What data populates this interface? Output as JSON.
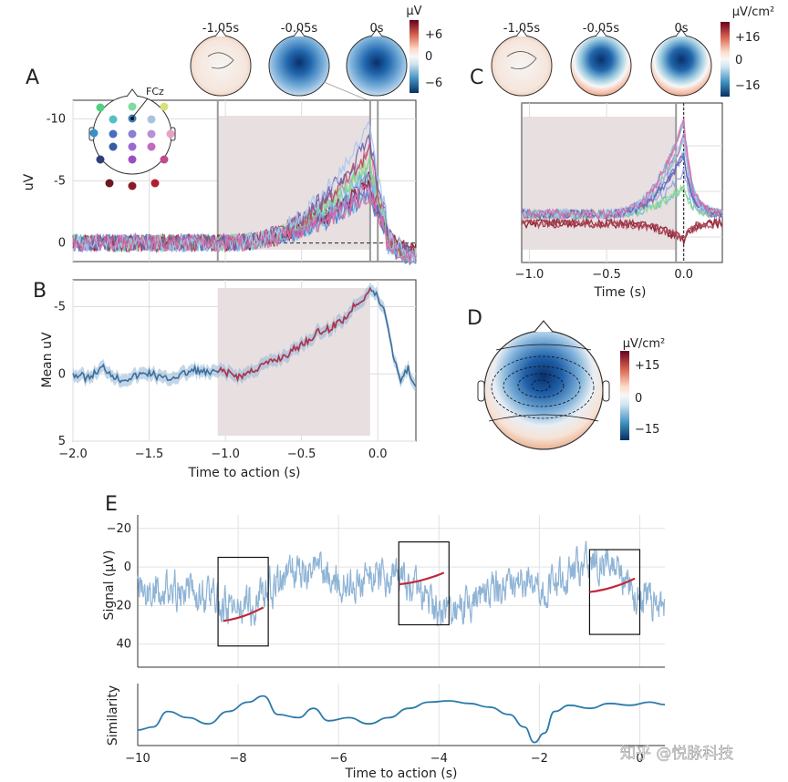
{
  "chart_data": [
    {
      "panel": "A",
      "type": "line",
      "ylabel": "uV",
      "y_inverted": true,
      "ylim": [
        1.5,
        -11.5
      ],
      "xlim": [
        -2.0,
        0.25
      ],
      "yticks": [
        "-10",
        "-5",
        "0"
      ],
      "ytick_values": [
        -10,
        -5,
        0
      ],
      "shaded_window": [
        -1.05,
        -0.05
      ],
      "markers": [
        -1.05,
        -0.05,
        0.0
      ],
      "electrode_label": "FCz",
      "description_series": "per-electrode ERP traces, colored by electrode",
      "grid": true
    },
    {
      "panel": "A-topomaps",
      "type": "heatmap",
      "titles": [
        "-1.05s",
        "-0.05s",
        "0s"
      ],
      "colorbar": {
        "unit": "µV",
        "ticks": [
          "+6",
          "0",
          "−6"
        ],
        "tick_values": [
          6,
          0,
          -6
        ]
      }
    },
    {
      "panel": "B",
      "type": "line",
      "ylabel": "Mean uV",
      "xlabel": "Time to action (s)",
      "y_inverted": true,
      "ylim": [
        5,
        -7
      ],
      "xlim": [
        -2.0,
        0.25
      ],
      "xticks": [
        "−2.0",
        "−1.5",
        "−1.0",
        "−0.5",
        "0.0"
      ],
      "xtick_values": [
        -2.0,
        -1.5,
        -1.0,
        -0.5,
        0.0
      ],
      "yticks": [
        "-5",
        "0",
        "5"
      ],
      "ytick_values": [
        -5,
        0,
        5
      ],
      "shaded_window": [
        -1.05,
        -0.05
      ],
      "x": [
        -2.0,
        -1.9,
        -1.8,
        -1.7,
        -1.6,
        -1.5,
        -1.4,
        -1.3,
        -1.2,
        -1.1,
        -1.05,
        -1.0,
        -0.9,
        -0.8,
        -0.7,
        -0.6,
        -0.5,
        -0.4,
        -0.3,
        -0.2,
        -0.15,
        -0.1,
        -0.05,
        0.0,
        0.05,
        0.1,
        0.15,
        0.2,
        0.25
      ],
      "y": [
        0.0,
        0.3,
        -0.5,
        0.4,
        0.2,
        -0.1,
        0.4,
        0.1,
        -0.3,
        0.0,
        -0.2,
        -0.1,
        0.2,
        -0.4,
        -0.9,
        -1.4,
        -2.2,
        -3.0,
        -3.5,
        -4.3,
        -5.2,
        -5.6,
        -6.3,
        -5.7,
        -4.5,
        -1.5,
        0.4,
        -0.4,
        1.2
      ],
      "grid": true
    },
    {
      "panel": "C",
      "type": "line",
      "xlabel": "Time (s)",
      "xlim": [
        -1.05,
        0.25
      ],
      "xticks": [
        "−1.0",
        "−0.5",
        "0.0"
      ],
      "xtick_values": [
        -1.0,
        -0.5,
        0.0
      ],
      "shaded_window": [
        -1.05,
        -0.05
      ],
      "markers": [
        -1.05,
        -0.05,
        0.0
      ],
      "grid": true
    },
    {
      "panel": "C-topomaps",
      "type": "heatmap",
      "titles": [
        "-1.05s",
        "-0.05s",
        "0s"
      ],
      "colorbar": {
        "unit": "µV/cm²",
        "ticks": [
          "+16",
          "0",
          "−16"
        ],
        "tick_values": [
          16,
          0,
          -16
        ]
      }
    },
    {
      "panel": "D",
      "type": "heatmap",
      "colorbar": {
        "unit": "µV/cm²",
        "ticks": [
          "+15",
          "0",
          "−15"
        ],
        "tick_values": [
          15,
          0,
          -15
        ]
      }
    },
    {
      "panel": "E",
      "type": "line",
      "ylabel": "Signal (µV)",
      "y_inverted": true,
      "ylim": [
        52,
        -27
      ],
      "xlim": [
        -10,
        0.5
      ],
      "yticks": [
        "−20",
        "0",
        "20",
        "40"
      ],
      "ytick_values": [
        -20,
        0,
        20,
        40
      ],
      "boxes": [
        {
          "x": [
            -8.4,
            -7.4
          ],
          "y": [
            -5,
            41
          ]
        },
        {
          "x": [
            -4.8,
            -3.8
          ],
          "y": [
            -13,
            30
          ]
        },
        {
          "x": [
            -1.0,
            0.0
          ],
          "y": [
            -9,
            35
          ]
        }
      ],
      "fits": [
        {
          "x": [
            -8.3,
            -7.5
          ],
          "y": [
            28,
            21
          ]
        },
        {
          "x": [
            -4.8,
            -3.9
          ],
          "y": [
            9,
            3
          ]
        },
        {
          "x": [
            -1.0,
            -0.1
          ],
          "y": [
            13,
            6
          ]
        }
      ],
      "grid": true
    },
    {
      "panel": "E-similarity",
      "type": "line",
      "ylabel": "Similarity",
      "xlabel": "Time to action (s)",
      "xlim": [
        -10,
        0.5
      ],
      "xticks": [
        "−10",
        "−8",
        "−6",
        "−4",
        "−2",
        "0"
      ],
      "xtick_values": [
        -10,
        -8,
        -6,
        -4,
        -2,
        0
      ],
      "x": [
        -10,
        -9.7,
        -9.4,
        -9.0,
        -8.6,
        -8.2,
        -7.8,
        -7.5,
        -7.2,
        -6.8,
        -6.5,
        -6.2,
        -5.8,
        -5.4,
        -5.0,
        -4.6,
        -4.2,
        -3.8,
        -3.4,
        -3.0,
        -2.6,
        -2.3,
        -2.1,
        -1.9,
        -1.7,
        -1.4,
        -1.0,
        -0.6,
        -0.2,
        0.2,
        0.5
      ],
      "y": [
        0.25,
        0.3,
        0.55,
        0.45,
        0.35,
        0.55,
        0.7,
        0.8,
        0.5,
        0.45,
        0.6,
        0.4,
        0.45,
        0.35,
        0.45,
        0.6,
        0.7,
        0.72,
        0.68,
        0.62,
        0.5,
        0.3,
        0.05,
        0.2,
        0.55,
        0.65,
        0.6,
        0.68,
        0.65,
        0.7,
        0.66
      ],
      "grid": true
    }
  ],
  "labels": {
    "panel_a": "A",
    "panel_b": "B",
    "panel_c": "C",
    "panel_d": "D",
    "panel_e": "E"
  },
  "watermark": "知乎 @悦脉科技",
  "colors": {
    "shade": "#e8dfe0",
    "mean_line": "#3d6f9c",
    "mean_window": "#b5334a",
    "signal": "#8fb4d6",
    "fit": "#c0283b",
    "similarity": "#2b7bab"
  }
}
